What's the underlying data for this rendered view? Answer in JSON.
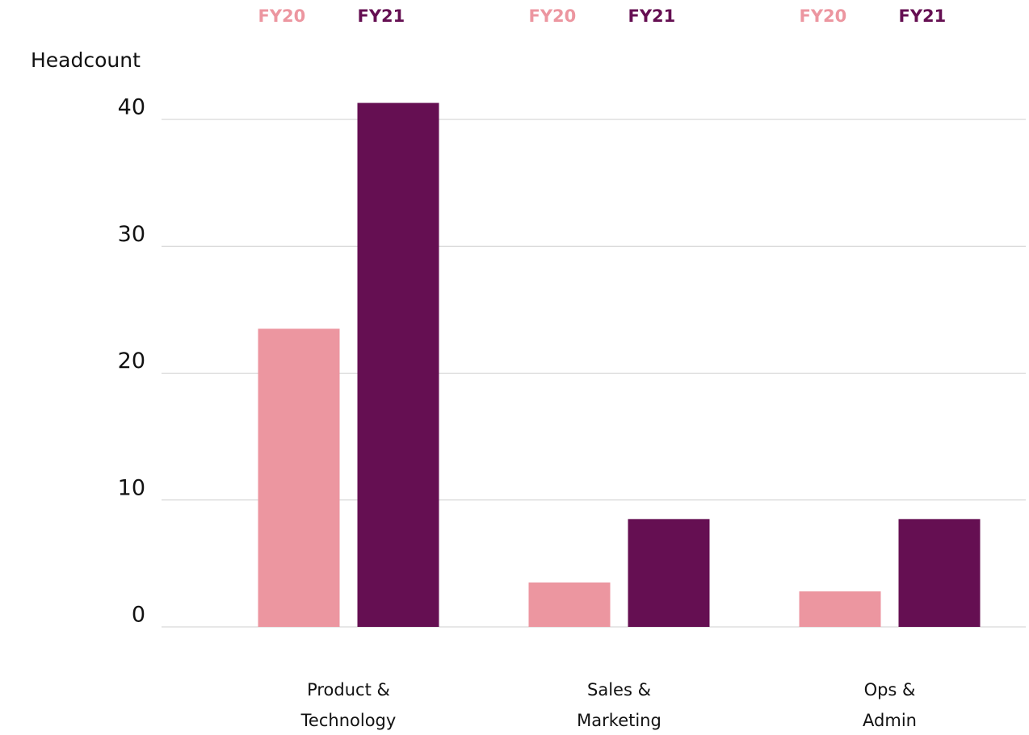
{
  "chart_data": {
    "type": "bar",
    "y_label": "Headcount",
    "categories": [
      "Product &\nTechnology",
      "Sales &\nMarketing",
      "Ops &\nAdmin"
    ],
    "series": [
      {
        "name": "FY20",
        "color": "#ec96a0",
        "values": [
          23.5,
          3.5,
          2.8
        ]
      },
      {
        "name": "FY21",
        "color": "#650f52",
        "values": [
          41.3,
          8.5,
          8.5
        ]
      }
    ],
    "ylim": [
      0,
      40
    ],
    "yticks": [
      0,
      10,
      20,
      30,
      40
    ],
    "grid": true
  }
}
